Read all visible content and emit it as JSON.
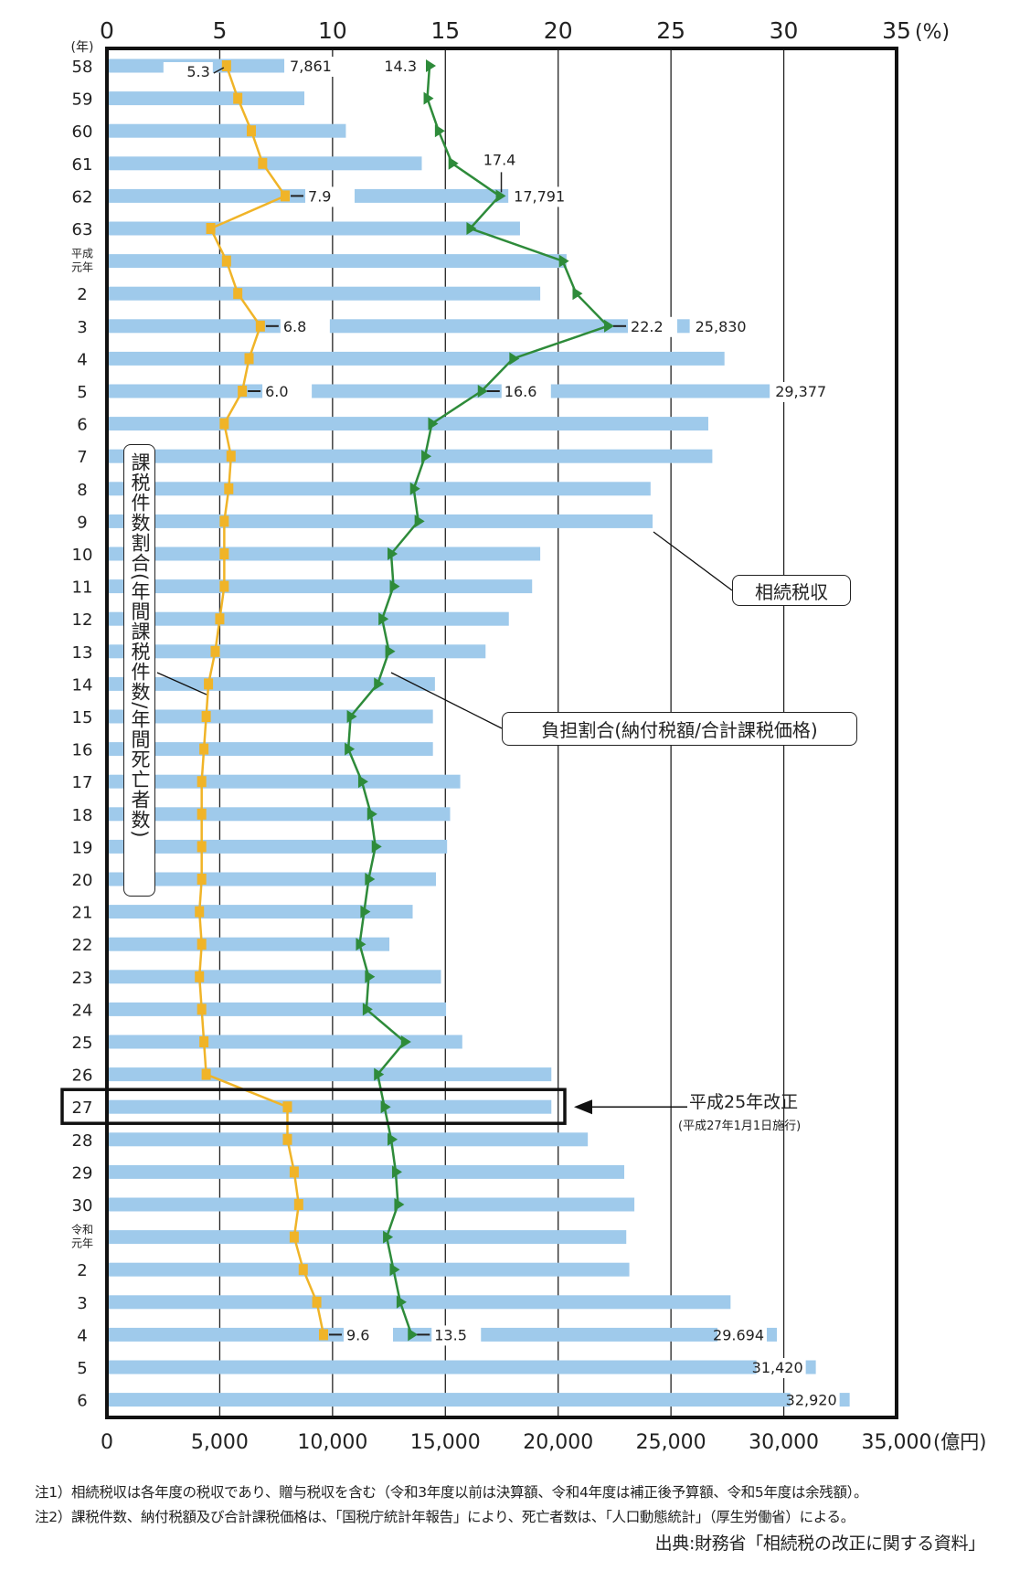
{
  "chart_data": {
    "type": "bar+line",
    "orientation": "horizontal",
    "category_axis_label": "(年)",
    "categories": [
      "58",
      "59",
      "60",
      "61",
      "62",
      "63",
      "平成元年",
      "2",
      "3",
      "4",
      "5",
      "6",
      "7",
      "8",
      "9",
      "10",
      "11",
      "12",
      "13",
      "14",
      "15",
      "16",
      "17",
      "18",
      "19",
      "20",
      "21",
      "22",
      "23",
      "24",
      "25",
      "26",
      "27",
      "28",
      "29",
      "30",
      "令和元年",
      "2",
      "3",
      "4",
      "5",
      "6"
    ],
    "top_axis": {
      "unit": "(%)",
      "range": [
        0,
        35
      ],
      "ticks": [
        "0",
        "5",
        "10",
        "15",
        "20",
        "25",
        "30",
        "35"
      ]
    },
    "bottom_axis": {
      "unit": "(億円)",
      "range": [
        0,
        35000
      ],
      "ticks": [
        "0",
        "5,000",
        "10,000",
        "15,000",
        "20,000",
        "25,000",
        "30,000",
        "35,000"
      ]
    },
    "grid": true,
    "series": [
      {
        "name": "相続税収",
        "type": "bar",
        "axis": "bottom",
        "color": "#9fcaeb",
        "values": [
          7861,
          8750,
          10590,
          13955,
          17791,
          18308,
          20372,
          19205,
          25830,
          27372,
          29377,
          26654,
          26833,
          24096,
          24186,
          19205,
          18846,
          17814,
          16782,
          14538,
          14449,
          14449,
          15660,
          15211,
          15077,
          14583,
          13551,
          12519,
          14807,
          15032,
          15750,
          19699,
          19699,
          21314,
          22929,
          23378,
          23019,
          23154,
          27641,
          29694,
          31420,
          32920
        ],
        "data_labels": [
          "7,861",
          null,
          null,
          null,
          "17,791",
          null,
          null,
          null,
          "25,830",
          null,
          "29,377",
          null,
          null,
          null,
          null,
          null,
          null,
          null,
          null,
          null,
          null,
          null,
          null,
          null,
          null,
          null,
          null,
          null,
          null,
          null,
          null,
          null,
          null,
          null,
          null,
          null,
          null,
          null,
          null,
          "29.694",
          "31,420",
          "32,920"
        ]
      },
      {
        "name": "課税件数割合(年間課税件数/年間死亡者数)",
        "type": "line",
        "axis": "top",
        "color": "#f0b428",
        "marker": "square",
        "values": [
          5.3,
          5.8,
          6.4,
          6.9,
          7.9,
          4.6,
          5.3,
          5.8,
          6.8,
          6.3,
          6.0,
          5.2,
          5.5,
          5.4,
          5.2,
          5.2,
          5.2,
          5.0,
          4.8,
          4.5,
          4.4,
          4.3,
          4.2,
          4.2,
          4.2,
          4.2,
          4.1,
          4.2,
          4.1,
          4.2,
          4.3,
          4.4,
          8.0,
          8.0,
          8.3,
          8.5,
          8.3,
          8.7,
          9.3,
          9.6,
          null,
          null
        ],
        "data_labels": [
          "5.3",
          null,
          null,
          null,
          "7.9",
          null,
          null,
          null,
          "6.8",
          null,
          "6.0",
          null,
          null,
          null,
          null,
          null,
          null,
          null,
          null,
          null,
          null,
          null,
          null,
          null,
          null,
          null,
          null,
          null,
          null,
          null,
          null,
          null,
          null,
          null,
          null,
          null,
          null,
          null,
          null,
          "9.6",
          null,
          null
        ]
      },
      {
        "name": "負担割合(納付税額/合計課税価格)",
        "type": "line",
        "axis": "top",
        "color": "#2e8b3a",
        "marker": "triangle-right",
        "values": [
          14.3,
          14.2,
          14.7,
          15.3,
          17.4,
          16.1,
          20.2,
          20.8,
          22.2,
          18.0,
          16.6,
          14.4,
          14.1,
          13.6,
          13.8,
          12.6,
          12.7,
          12.2,
          12.5,
          12.0,
          10.8,
          10.7,
          11.3,
          11.7,
          11.9,
          11.6,
          11.4,
          11.2,
          11.6,
          11.5,
          13.2,
          12.0,
          12.3,
          12.6,
          12.8,
          12.9,
          12.4,
          12.7,
          13.0,
          13.5,
          null,
          null
        ],
        "data_labels": [
          "14.3",
          null,
          null,
          null,
          "17.4",
          null,
          null,
          null,
          "22.2",
          null,
          "16.6",
          null,
          null,
          null,
          null,
          null,
          null,
          null,
          null,
          null,
          null,
          null,
          null,
          null,
          null,
          null,
          null,
          null,
          null,
          null,
          null,
          null,
          null,
          null,
          null,
          null,
          null,
          null,
          null,
          "13.5",
          null,
          null
        ]
      }
    ],
    "annotations": {
      "highlight_category": "27",
      "revision_title": "平成25年改正",
      "revision_sub": "(平成27年1月1日施行)"
    }
  },
  "notes": [
    "注1）相続税収は各年度の税収であり、贈与税収を含む（令和3年度以前は決算額、令和4年度は補正後予算額、令和5年度は余残額）。",
    "注2）課税件数、納付税額及び合計課税価格は、「国税庁統計年報告」により、死亡者数は、「人口動態統計」（厚生労働省）による。"
  ],
  "source": "出典:財務省「相続税の改正に関する資料」"
}
